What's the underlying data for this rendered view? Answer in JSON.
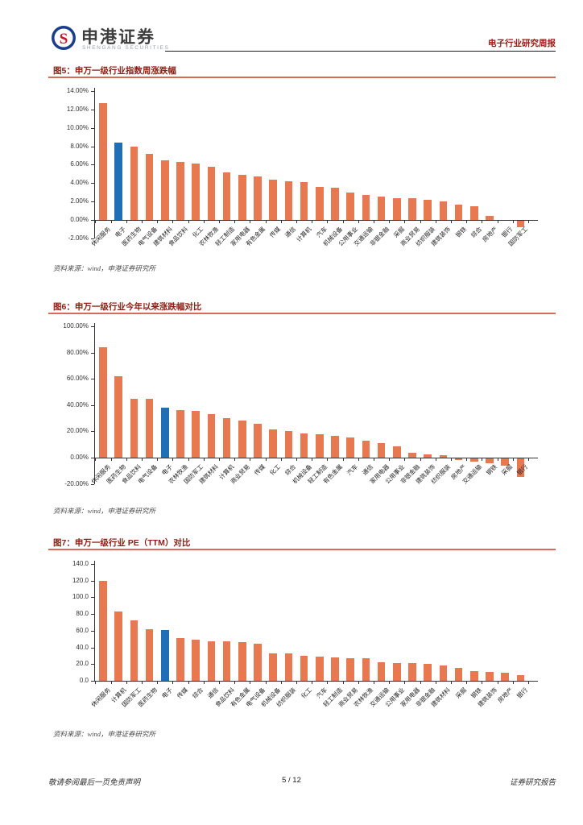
{
  "header": {
    "brand_cn": "申港证券",
    "brand_en": "SHENGANG SECURITIES",
    "report_type": "电子行业研究周报"
  },
  "source_note": "资料来源：wind，申港证券研究所",
  "footer": {
    "disclaimer": "敬请参阅最后一页免责声明",
    "page_number": "5 / 12",
    "doc_type": "证券研究报告"
  },
  "colors": {
    "bar_orange": "#E8784F",
    "bar_blue": "#1E6FB5",
    "title_red": "#8E1F14",
    "underline_salmon": "#D96A55",
    "header_red": "#A01915"
  },
  "chart_data": [
    {
      "type": "bar",
      "title": "图5：申万一级行业指数周涨跌幅",
      "categories": [
        "休闲服务",
        "电子",
        "医药生物",
        "电气设备",
        "建筑材料",
        "食品饮料",
        "化工",
        "农林牧渔",
        "轻工制造",
        "家用电器",
        "有色金属",
        "传媒",
        "通信",
        "计算机",
        "汽车",
        "机械设备",
        "公用事业",
        "交通运输",
        "非银金融",
        "采掘",
        "商业贸易",
        "纺织服装",
        "建筑装饰",
        "钢铁",
        "综合",
        "房地产",
        "银行",
        "国防军工"
      ],
      "values": [
        12.7,
        8.4,
        8.0,
        7.2,
        6.5,
        6.3,
        6.1,
        5.8,
        5.2,
        4.9,
        4.7,
        4.4,
        4.2,
        4.1,
        3.6,
        3.5,
        3.0,
        2.7,
        2.5,
        2.4,
        2.4,
        2.2,
        2.0,
        1.7,
        1.5,
        0.4,
        0.0,
        -0.7
      ],
      "unit": "%",
      "highlight_category": "电子",
      "highlight_index": 1,
      "bar_color": "#E8784F",
      "highlight_color": "#1E6FB5",
      "yticks": [
        "14.00%",
        "12.00%",
        "10.00%",
        "8.00%",
        "6.00%",
        "4.00%",
        "2.00%",
        "0.00%",
        "-2.00%"
      ],
      "ylim": [
        -2,
        14
      ],
      "grid": "off",
      "legend": "none"
    },
    {
      "type": "bar",
      "title": "图6：申万一级行业今年以来涨跌幅对比",
      "categories": [
        "休闲服务",
        "医药生物",
        "食品饮料",
        "电气设备",
        "电子",
        "农林牧渔",
        "国防军工",
        "建筑材料",
        "计算机",
        "商业贸易",
        "传媒",
        "化工",
        "综合",
        "机械设备",
        "轻工制造",
        "有色金属",
        "汽车",
        "通信",
        "家用电器",
        "公用事业",
        "非银金融",
        "建筑装饰",
        "纺织服装",
        "房地产",
        "交通运输",
        "钢铁",
        "采掘",
        "银行"
      ],
      "values": [
        84,
        62,
        45,
        44.5,
        38,
        36,
        35.5,
        33,
        30,
        28.5,
        26,
        21.5,
        20.5,
        18.5,
        17.5,
        16.5,
        15.5,
        13,
        11,
        8.5,
        3.5,
        2.5,
        2,
        -1,
        -2.5,
        -3.5,
        -5.5,
        -14
      ],
      "unit": "%",
      "highlight_category": "电子",
      "highlight_index": 4,
      "bar_color": "#E8784F",
      "highlight_color": "#1E6FB5",
      "yticks": [
        "100.00%",
        "80.00%",
        "60.00%",
        "40.00%",
        "20.00%",
        "0.00%",
        "-20.00%"
      ],
      "ylim": [
        -20,
        100
      ],
      "grid": "off",
      "legend": "none"
    },
    {
      "type": "bar",
      "title": "图7：申万一级行业 PE（TTM）对比",
      "categories": [
        "休闲服务",
        "计算机",
        "国防军工",
        "医药生物",
        "电子",
        "传媒",
        "综合",
        "通信",
        "食品饮料",
        "有色金属",
        "电气设备",
        "机械设备",
        "纺织服装",
        "化工",
        "汽车",
        "轻工制造",
        "商业贸易",
        "农林牧渔",
        "交通运输",
        "公用事业",
        "家用电器",
        "非银金融",
        "建筑材料",
        "采掘",
        "钢铁",
        "建筑装饰",
        "房地产",
        "银行"
      ],
      "values": [
        120,
        83,
        72,
        62,
        60.5,
        51.5,
        49,
        47.5,
        47,
        46,
        44,
        33,
        33,
        29.5,
        28.5,
        28,
        27.5,
        27.5,
        22,
        21.5,
        21,
        20.5,
        18.5,
        15,
        12,
        11,
        9.5,
        7
      ],
      "unit": "x",
      "highlight_category": "电子",
      "highlight_index": 4,
      "bar_color": "#E8784F",
      "highlight_color": "#1E6FB5",
      "yticks": [
        "140.0",
        "120.0",
        "100.0",
        "80.0",
        "60.0",
        "40.0",
        "20.0",
        "0.0"
      ],
      "ylim": [
        0,
        140
      ],
      "grid": "off",
      "legend": "none"
    }
  ]
}
